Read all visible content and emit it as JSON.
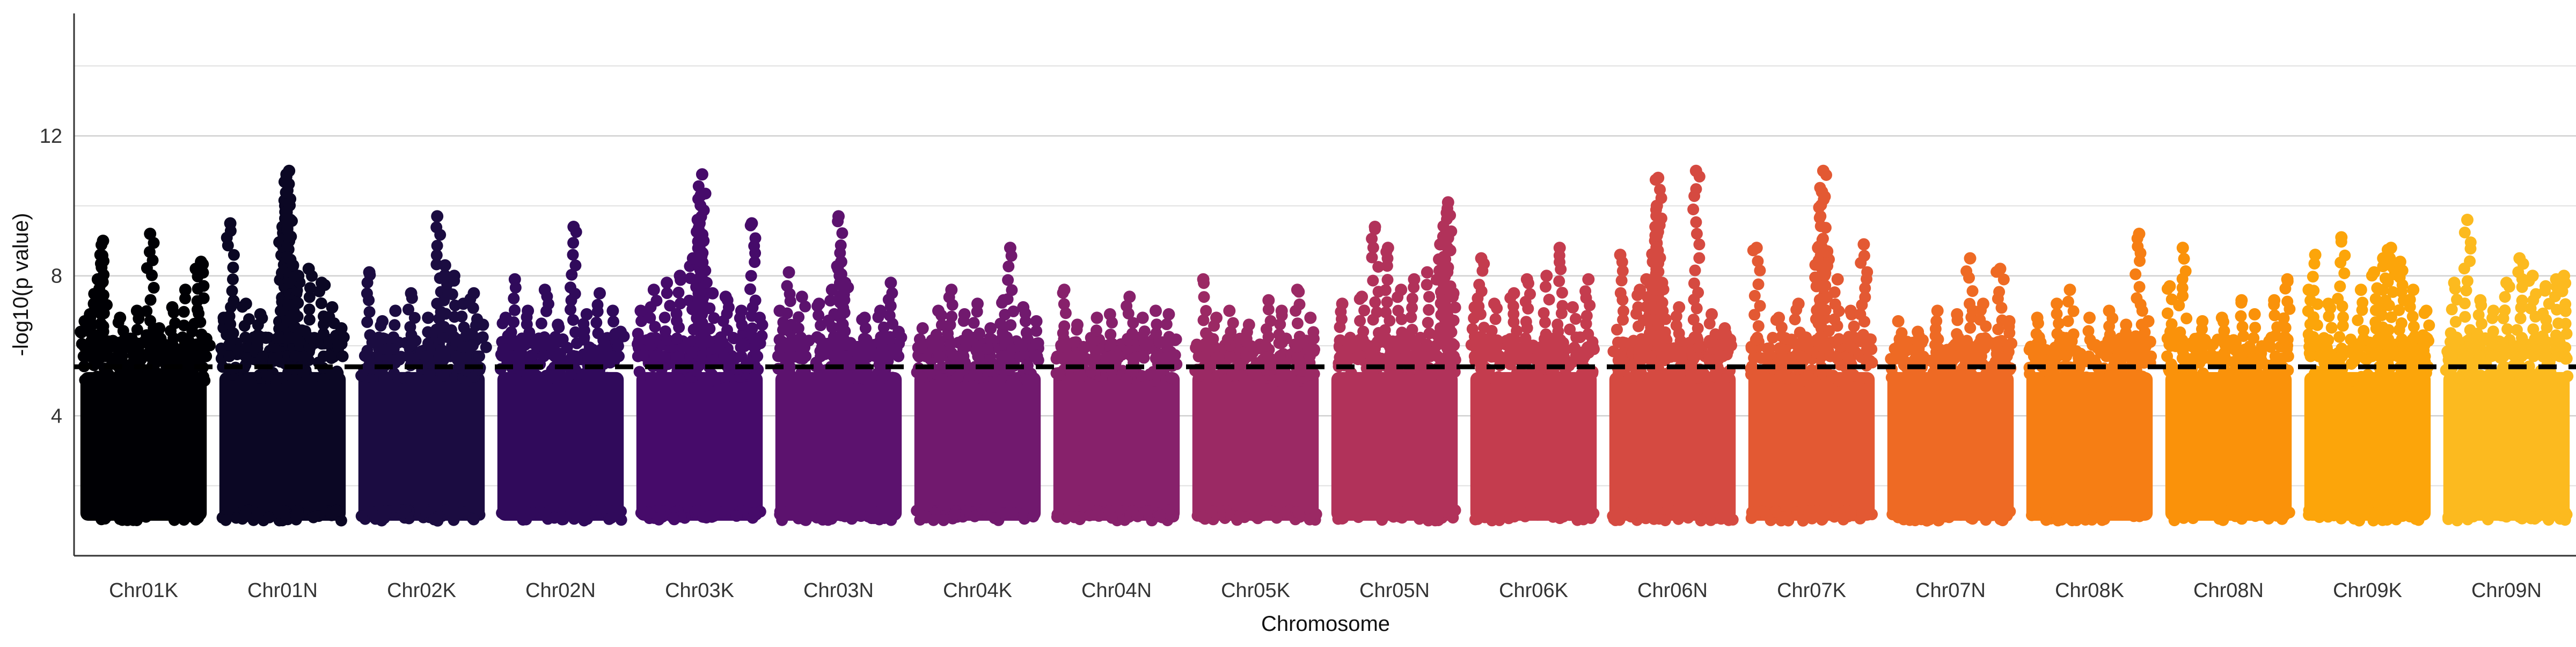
{
  "chart_data": {
    "type": "scatter",
    "title": "",
    "xlabel": "Chromosome",
    "ylabel": "-log10(p value)",
    "ylim": [
      0,
      15.5
    ],
    "yticks": [
      4,
      8,
      12
    ],
    "grid": "horizontal major lines",
    "threshold": 5.4,
    "threshold_style": "black dashed",
    "legend": "none",
    "categories": [
      "Chr01K",
      "Chr01N",
      "Chr02K",
      "Chr02N",
      "Chr03K",
      "Chr03N",
      "Chr04K",
      "Chr04N",
      "Chr05K",
      "Chr05N",
      "Chr06K",
      "Chr06N",
      "Chr07K",
      "Chr07N",
      "Chr08K",
      "Chr08N",
      "Chr09K",
      "Chr09N"
    ],
    "colors": [
      "#000004",
      "#0b0724",
      "#1b0c41",
      "#300a5b",
      "#460b6a",
      "#5c126e",
      "#71196e",
      "#87216b",
      "#9b2964",
      "#b1325a",
      "#c43c4e",
      "#d54a41",
      "#e35933",
      "#ee6a24",
      "#f67e14",
      "#fa920a",
      "#fca50a",
      "#fcba1f"
    ],
    "base_range": [
      1.0,
      5.4
    ],
    "series": [
      {
        "name": "Chr01K",
        "peaks": [
          [
            0.02,
            6.4
          ],
          [
            0.05,
            6.7
          ],
          [
            0.09,
            6.9
          ],
          [
            0.12,
            7.2
          ],
          [
            0.15,
            7.9
          ],
          [
            0.17,
            8.6
          ],
          [
            0.19,
            9.0
          ],
          [
            0.32,
            6.8
          ],
          [
            0.45,
            7.0
          ],
          [
            0.55,
            9.2
          ],
          [
            0.62,
            6.5
          ],
          [
            0.72,
            7.1
          ],
          [
            0.82,
            7.6
          ],
          [
            0.9,
            8.2
          ],
          [
            0.94,
            8.4
          ],
          [
            0.98,
            6.2
          ]
        ]
      },
      {
        "name": "Chr01N",
        "peaks": [
          [
            0.05,
            6.8
          ],
          [
            0.1,
            9.5
          ],
          [
            0.22,
            7.2
          ],
          [
            0.33,
            6.9
          ],
          [
            0.5,
            9.4
          ],
          [
            0.52,
            10.0
          ],
          [
            0.53,
            10.9
          ],
          [
            0.55,
            11.0
          ],
          [
            0.56,
            9.6
          ],
          [
            0.58,
            8.3
          ],
          [
            0.62,
            8.0
          ],
          [
            0.7,
            8.2
          ],
          [
            0.8,
            7.8
          ],
          [
            0.88,
            7.1
          ],
          [
            0.95,
            6.5
          ]
        ]
      },
      {
        "name": "Chr02K",
        "peaks": [
          [
            0.1,
            8.1
          ],
          [
            0.2,
            6.7
          ],
          [
            0.3,
            7.0
          ],
          [
            0.42,
            7.5
          ],
          [
            0.55,
            6.8
          ],
          [
            0.62,
            9.7
          ],
          [
            0.68,
            8.3
          ],
          [
            0.75,
            8.0
          ],
          [
            0.82,
            7.2
          ],
          [
            0.9,
            7.5
          ],
          [
            0.97,
            6.6
          ]
        ]
      },
      {
        "name": "Chr02N",
        "peaks": [
          [
            0.08,
            6.8
          ],
          [
            0.15,
            7.9
          ],
          [
            0.25,
            7.0
          ],
          [
            0.38,
            7.6
          ],
          [
            0.48,
            6.6
          ],
          [
            0.6,
            9.4
          ],
          [
            0.7,
            6.9
          ],
          [
            0.8,
            7.5
          ],
          [
            0.9,
            7.0
          ],
          [
            0.96,
            6.4
          ]
        ]
      },
      {
        "name": "Chr03K",
        "peaks": [
          [
            0.05,
            7.0
          ],
          [
            0.15,
            7.6
          ],
          [
            0.25,
            7.8
          ],
          [
            0.35,
            8.0
          ],
          [
            0.45,
            8.5
          ],
          [
            0.5,
            9.5
          ],
          [
            0.51,
            10.3
          ],
          [
            0.52,
            10.9
          ],
          [
            0.53,
            9.0
          ],
          [
            0.6,
            7.5
          ],
          [
            0.7,
            7.4
          ],
          [
            0.82,
            7.0
          ],
          [
            0.9,
            9.5
          ],
          [
            0.96,
            6.8
          ]
        ]
      },
      {
        "name": "Chr03N",
        "peaks": [
          [
            0.05,
            7.0
          ],
          [
            0.12,
            8.1
          ],
          [
            0.22,
            7.4
          ],
          [
            0.35,
            7.2
          ],
          [
            0.45,
            7.6
          ],
          [
            0.5,
            9.7
          ],
          [
            0.52,
            8.4
          ],
          [
            0.55,
            7.8
          ],
          [
            0.7,
            6.8
          ],
          [
            0.82,
            7.0
          ],
          [
            0.9,
            7.8
          ],
          [
            0.96,
            6.4
          ]
        ]
      },
      {
        "name": "Chr04K",
        "peaks": [
          [
            0.08,
            6.5
          ],
          [
            0.2,
            7.0
          ],
          [
            0.3,
            7.6
          ],
          [
            0.4,
            6.9
          ],
          [
            0.5,
            7.2
          ],
          [
            0.6,
            6.5
          ],
          [
            0.7,
            7.3
          ],
          [
            0.75,
            8.8
          ],
          [
            0.85,
            7.1
          ],
          [
            0.95,
            6.7
          ]
        ]
      },
      {
        "name": "Chr04N",
        "peaks": [
          [
            0.1,
            7.6
          ],
          [
            0.2,
            6.6
          ],
          [
            0.35,
            6.8
          ],
          [
            0.45,
            6.9
          ],
          [
            0.6,
            7.4
          ],
          [
            0.7,
            6.8
          ],
          [
            0.8,
            7.0
          ],
          [
            0.9,
            6.9
          ]
        ]
      },
      {
        "name": "Chr05K",
        "peaks": [
          [
            0.1,
            7.9
          ],
          [
            0.2,
            6.8
          ],
          [
            0.3,
            7.0
          ],
          [
            0.45,
            6.6
          ],
          [
            0.6,
            7.3
          ],
          [
            0.7,
            7.0
          ],
          [
            0.82,
            7.6
          ],
          [
            0.92,
            6.8
          ]
        ]
      },
      {
        "name": "Chr05N",
        "peaks": [
          [
            0.1,
            7.2
          ],
          [
            0.25,
            7.4
          ],
          [
            0.35,
            9.4
          ],
          [
            0.45,
            8.8
          ],
          [
            0.55,
            7.6
          ],
          [
            0.65,
            7.9
          ],
          [
            0.75,
            8.1
          ],
          [
            0.85,
            8.9
          ],
          [
            0.88,
            9.0
          ],
          [
            0.9,
            9.8
          ],
          [
            0.91,
            10.1
          ],
          [
            0.95,
            7.5
          ]
        ]
      },
      {
        "name": "Chr06K",
        "peaks": [
          [
            0.05,
            7.1
          ],
          [
            0.1,
            8.5
          ],
          [
            0.2,
            7.2
          ],
          [
            0.35,
            7.5
          ],
          [
            0.45,
            7.9
          ],
          [
            0.6,
            8.0
          ],
          [
            0.7,
            8.8
          ],
          [
            0.8,
            7.1
          ],
          [
            0.92,
            7.9
          ]
        ]
      },
      {
        "name": "Chr06N",
        "peaks": [
          [
            0.1,
            8.6
          ],
          [
            0.25,
            7.6
          ],
          [
            0.3,
            7.9
          ],
          [
            0.35,
            8.4
          ],
          [
            0.37,
            9.4
          ],
          [
            0.38,
            10.0
          ],
          [
            0.39,
            10.8
          ],
          [
            0.42,
            7.8
          ],
          [
            0.55,
            7.1
          ],
          [
            0.68,
            11.0
          ],
          [
            0.8,
            6.9
          ],
          [
            0.9,
            6.5
          ]
        ]
      },
      {
        "name": "Chr07K",
        "peaks": [
          [
            0.08,
            8.8
          ],
          [
            0.25,
            6.8
          ],
          [
            0.4,
            7.2
          ],
          [
            0.55,
            8.8
          ],
          [
            0.58,
            10.4
          ],
          [
            0.59,
            11.0
          ],
          [
            0.62,
            8.7
          ],
          [
            0.7,
            7.9
          ],
          [
            0.8,
            7.0
          ],
          [
            0.9,
            8.9
          ]
        ]
      },
      {
        "name": "Chr07N",
        "peaks": [
          [
            0.1,
            6.7
          ],
          [
            0.25,
            6.4
          ],
          [
            0.4,
            7.0
          ],
          [
            0.55,
            6.9
          ],
          [
            0.65,
            8.5
          ],
          [
            0.75,
            7.2
          ],
          [
            0.88,
            8.2
          ],
          [
            0.95,
            6.7
          ]
        ]
      },
      {
        "name": "Chr08K",
        "peaks": [
          [
            0.1,
            6.8
          ],
          [
            0.25,
            7.2
          ],
          [
            0.35,
            7.6
          ],
          [
            0.5,
            6.8
          ],
          [
            0.65,
            7.0
          ],
          [
            0.78,
            6.6
          ],
          [
            0.88,
            9.2
          ],
          [
            0.95,
            6.7
          ]
        ]
      },
      {
        "name": "Chr08N",
        "peaks": [
          [
            0.05,
            7.7
          ],
          [
            0.15,
            8.8
          ],
          [
            0.3,
            6.7
          ],
          [
            0.45,
            6.8
          ],
          [
            0.6,
            7.3
          ],
          [
            0.7,
            6.9
          ],
          [
            0.85,
            7.3
          ],
          [
            0.95,
            7.9
          ]
        ]
      },
      {
        "name": "Chr09K",
        "peaks": [
          [
            0.05,
            7.6
          ],
          [
            0.1,
            8.6
          ],
          [
            0.2,
            7.2
          ],
          [
            0.3,
            9.1
          ],
          [
            0.45,
            7.6
          ],
          [
            0.55,
            8.1
          ],
          [
            0.62,
            8.5
          ],
          [
            0.68,
            8.8
          ],
          [
            0.75,
            8.4
          ],
          [
            0.85,
            7.6
          ],
          [
            0.95,
            7.0
          ]
        ]
      },
      {
        "name": "Chr09N",
        "peaks": [
          [
            0.1,
            7.8
          ],
          [
            0.2,
            9.6
          ],
          [
            0.3,
            7.3
          ],
          [
            0.4,
            7.0
          ],
          [
            0.5,
            7.8
          ],
          [
            0.6,
            8.5
          ],
          [
            0.7,
            8.0
          ],
          [
            0.8,
            7.7
          ],
          [
            0.88,
            7.9
          ],
          [
            0.94,
            8.0
          ]
        ]
      }
    ]
  }
}
